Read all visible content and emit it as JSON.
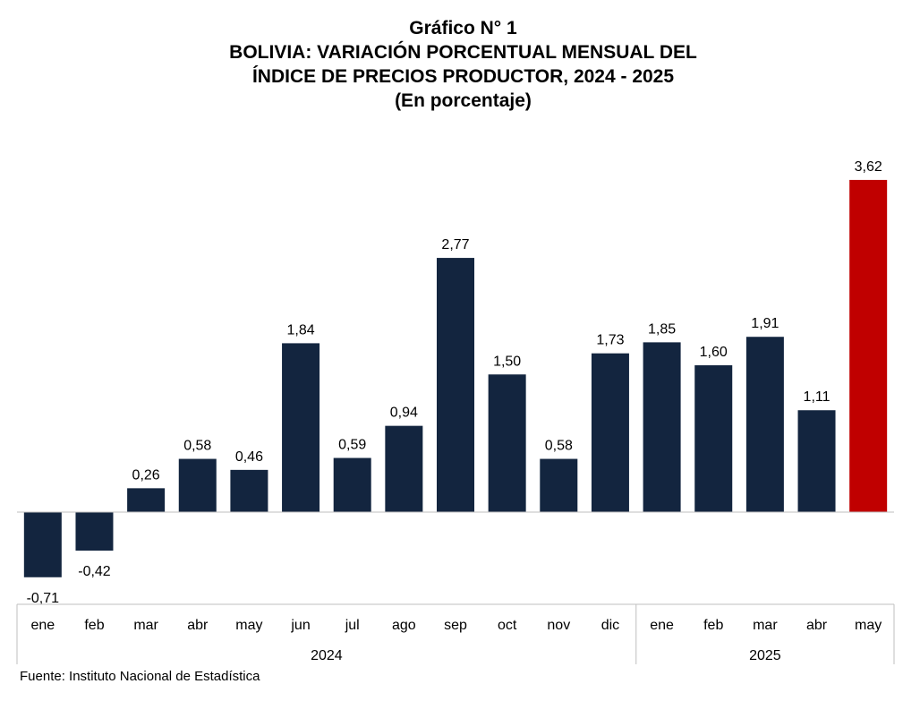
{
  "titles": {
    "line1": "Gráfico N° 1",
    "line2": "BOLIVIA: VARIACIÓN PORCENTUAL MENSUAL DEL",
    "line3": "ÍNDICE DE PRECIOS PRODUCTOR, 2024 - 2025",
    "line4": "(En porcentaje)"
  },
  "source": "Fuente: Instituto Nacional de Estadística",
  "colors": {
    "bar": "#13253f",
    "highlight": "#c00000",
    "axis": "#bfbfbf"
  },
  "chart_data": {
    "type": "bar",
    "categories": [
      "ene",
      "feb",
      "mar",
      "abr",
      "may",
      "jun",
      "jul",
      "ago",
      "sep",
      "oct",
      "nov",
      "dic",
      "ene",
      "feb",
      "mar",
      "abr",
      "may"
    ],
    "groups": [
      {
        "label": "2024",
        "count": 12
      },
      {
        "label": "2025",
        "count": 5
      }
    ],
    "values": [
      -0.71,
      -0.42,
      0.26,
      0.58,
      0.46,
      1.84,
      0.59,
      0.94,
      2.77,
      1.5,
      0.58,
      1.73,
      1.85,
      1.6,
      1.91,
      1.11,
      3.62
    ],
    "value_labels": [
      "-0,71",
      "-0,42",
      "0,26",
      "0,58",
      "0,46",
      "1,84",
      "0,59",
      "0,94",
      "2,77",
      "1,50",
      "0,58",
      "1,73",
      "1,85",
      "1,60",
      "1,91",
      "1,11",
      "3,62"
    ],
    "highlight_index": 16,
    "xlabel": "",
    "ylabel": "",
    "grid": false,
    "legend": "none"
  }
}
